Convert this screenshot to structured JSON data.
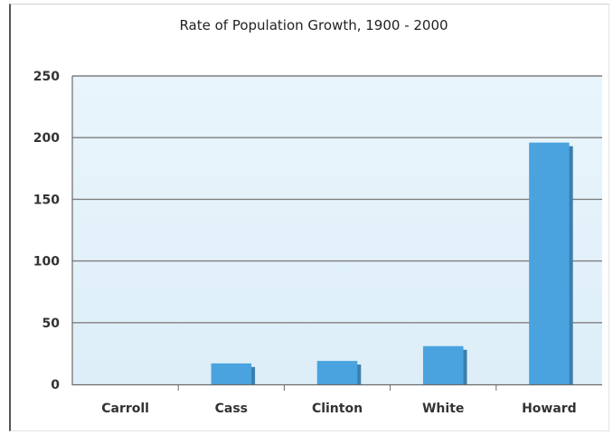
{
  "chart_data": {
    "type": "bar",
    "title": "Rate of Population Growth, 1900 - 2000",
    "xlabel": "",
    "ylabel": "",
    "categories": [
      "Carroll",
      "Cass",
      "Clinton",
      "White",
      "Howard"
    ],
    "values": [
      0,
      17,
      19,
      31,
      196
    ],
    "ylim": [
      0,
      250
    ],
    "yticks": [
      0,
      50,
      100,
      150,
      200,
      250
    ],
    "grid": true,
    "legend": "none",
    "colors": {
      "bar": "#4aa3df",
      "bar_shadow": "#3b7fae",
      "plot_background": "#e6f3fb",
      "gridline": "#7f7f7f"
    }
  }
}
